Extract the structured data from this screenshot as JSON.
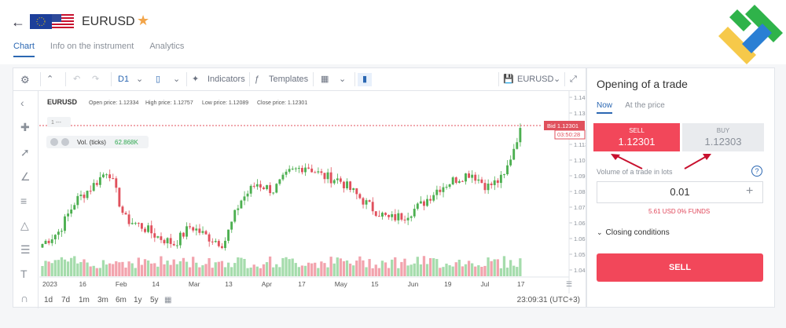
{
  "header": {
    "symbol": "EURUSD",
    "tabs": [
      {
        "label": "Chart",
        "active": true
      },
      {
        "label": "Info on the instrument",
        "active": false
      },
      {
        "label": "Analytics",
        "active": false
      }
    ]
  },
  "toolbar": {
    "timeframe": "D1",
    "indicators_label": "Indicators",
    "templates_label": "Templates",
    "instrument": "EURUSD"
  },
  "chart_info": {
    "symbol": "EURUSD",
    "open": "Open price: 1.12334",
    "high": "High price: 1.12757",
    "low": "Low price: 1.12089",
    "close": "Close price: 1.12301",
    "volume_label": "Vol. (ticks)",
    "volume_value": "62.868K",
    "order_marker": "1 ---",
    "bid_label": "Bid 1.12301",
    "countdown": "03:50:28"
  },
  "chart_data": {
    "type": "candlestick",
    "y_ticks": [
      "1.14020",
      "1.13140",
      "1.12260",
      "1.11380",
      "1.10500",
      "1.09620",
      "1.08740",
      "1.07860",
      "1.06980",
      "1.06100",
      "1.05220",
      "1.04340"
    ],
    "x_ticks": [
      "2023",
      "16",
      "Feb",
      "14",
      "Mar",
      "13",
      "Apr",
      "17",
      "May",
      "15",
      "Jun",
      "19",
      "Jul",
      "17"
    ],
    "close_anchors": [
      1.058,
      1.065,
      1.082,
      1.09,
      1.1,
      1.072,
      1.068,
      1.062,
      1.058,
      1.068,
      1.062,
      1.058,
      1.082,
      1.092,
      1.088,
      1.098,
      1.102,
      1.096,
      1.094,
      1.086,
      1.078,
      1.072,
      1.074,
      1.08,
      1.089,
      1.094,
      1.098,
      1.09,
      1.095,
      1.123
    ],
    "last_price": 1.12301,
    "colors": {
      "up": "#4caf50",
      "down": "#e0505c",
      "vol_up": "#a5dcac",
      "vol_down": "#f2a3ad"
    }
  },
  "bottombar": {
    "timeframes": [
      "1d",
      "7d",
      "1m",
      "3m",
      "6m",
      "1y",
      "5y"
    ],
    "clock": "23:09:31 (UTC+3)"
  },
  "trade_panel": {
    "title": "Opening of a trade",
    "tabs": [
      {
        "label": "Now",
        "active": true
      },
      {
        "label": "At the price",
        "active": false
      }
    ],
    "sell_label": "SELL",
    "sell_price": "1.12301",
    "buy_label": "BUY",
    "buy_price": "1.12303",
    "volume_label": "Volume of a trade in lots",
    "volume_value": "0.01",
    "funds_info": "5.61 USD   0% FUNDS",
    "closing_label": "Closing conditions",
    "sell_button": "SELL"
  }
}
